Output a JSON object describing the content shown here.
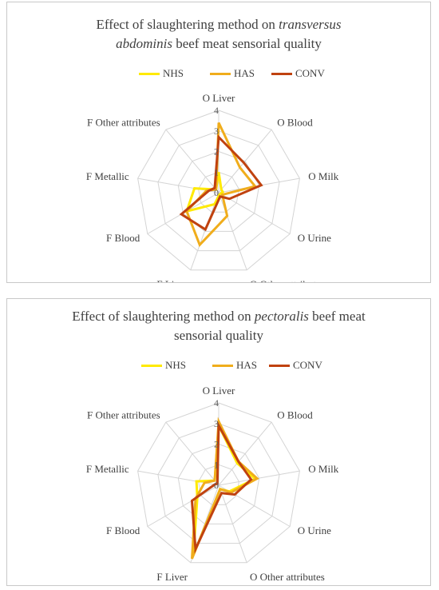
{
  "chart_data": [
    {
      "type": "radar",
      "title_parts": [
        {
          "text": "Effect of slaughtering method on ",
          "italic": false
        },
        {
          "text": "transversus",
          "italic": true
        },
        {
          "text": " ",
          "italic": false
        },
        {
          "text": "abdominis",
          "italic": true
        },
        {
          "text": " beef meat sensorial quality",
          "italic": false
        }
      ],
      "title_lines": [
        [
          {
            "text": "Effect of slaughtering method on ",
            "italic": false
          },
          {
            "text": "transversus",
            "italic": true
          }
        ],
        [
          {
            "text": "abdominis",
            "italic": true
          },
          {
            "text": " beef meat sensorial quality",
            "italic": false
          }
        ]
      ],
      "categories": [
        "O Liver",
        "O Blood",
        "O Milk",
        "O Urine",
        "O Other attributes",
        "F Liver",
        "F Blood",
        "F Metallic",
        "F Other attributes"
      ],
      "r_ticks": [
        "0",
        "1",
        "2",
        "3",
        "4"
      ],
      "rlim": [
        0,
        4
      ],
      "legend": "top",
      "series": [
        {
          "name": "NHS",
          "color": "#ffea00",
          "values": [
            1.0,
            0.2,
            0.2,
            0.1,
            0.1,
            0.6,
            1.8,
            1.2,
            0.2
          ]
        },
        {
          "name": "HAS",
          "color": "#f0ad1c",
          "values": [
            3.4,
            1.6,
            1.8,
            0.2,
            1.2,
            2.7,
            1.8,
            0.6,
            0.2
          ]
        },
        {
          "name": "CONV",
          "color": "#c0420f",
          "values": [
            2.7,
            1.9,
            2.1,
            0.6,
            0.2,
            1.9,
            2.1,
            0.5,
            0.3
          ]
        }
      ]
    },
    {
      "type": "radar",
      "title_parts": [
        {
          "text": "Effect of slaughtering method on ",
          "italic": false
        },
        {
          "text": "pectoralis",
          "italic": true
        },
        {
          "text": " beef meat sensorial quality",
          "italic": false
        }
      ],
      "title_lines": [
        [
          {
            "text": "Effect of slaughtering method on ",
            "italic": false
          },
          {
            "text": "pectoralis",
            "italic": true
          },
          {
            "text": " beef meat",
            "italic": false
          }
        ],
        [
          {
            "text": "sensorial quality",
            "italic": false
          }
        ]
      ],
      "categories": [
        "O Liver",
        "O Blood",
        "O Milk",
        "O Urine",
        "O Other attributes",
        "F Liver",
        "F Blood",
        "F Metallic",
        "F Other attributes"
      ],
      "r_ticks": [
        "0",
        "1",
        "2",
        "3",
        "4"
      ],
      "rlim": [
        0,
        4
      ],
      "legend": "top",
      "series": [
        {
          "name": "NHS",
          "color": "#ffea00",
          "values": [
            2.9,
            1.4,
            1.8,
            0.6,
            0.2,
            3.6,
            1.2,
            1.1,
            0.3
          ]
        },
        {
          "name": "HAS",
          "color": "#f0ad1c",
          "values": [
            3.1,
            1.5,
            1.9,
            0.7,
            0.2,
            3.8,
            1.3,
            0.7,
            0.3
          ]
        },
        {
          "name": "CONV",
          "color": "#c0420f",
          "values": [
            2.9,
            1.5,
            1.6,
            0.9,
            0.4,
            3.3,
            1.5,
            0.2,
            0.1
          ]
        }
      ]
    }
  ]
}
